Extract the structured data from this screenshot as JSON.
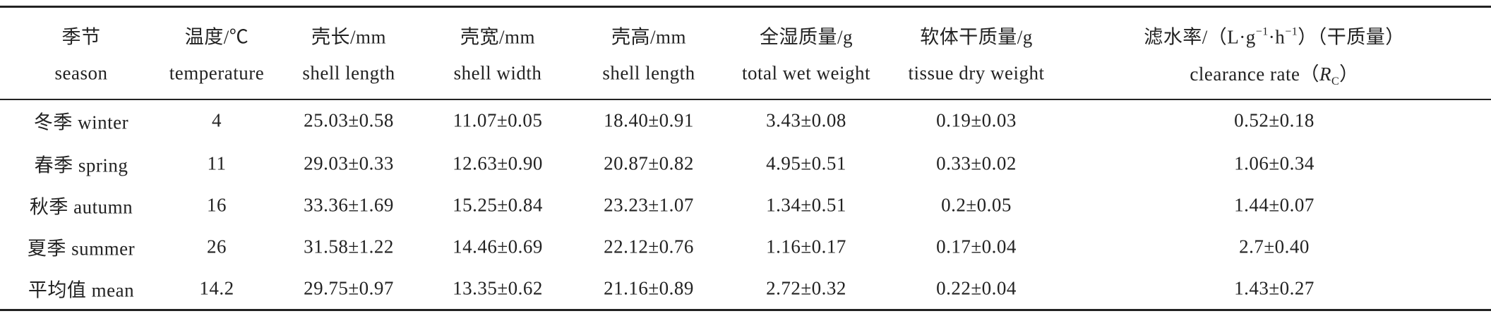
{
  "table": {
    "header": [
      {
        "zh": [
          "季节"
        ],
        "en": [
          "season"
        ]
      },
      {
        "zh": [
          "温度/℃"
        ],
        "en": [
          "temperature"
        ]
      },
      {
        "zh": [
          "壳长/mm"
        ],
        "en": [
          "shell length"
        ]
      },
      {
        "zh": [
          "壳宽/mm"
        ],
        "en": [
          "shell width"
        ]
      },
      {
        "zh": [
          "壳高/mm"
        ],
        "en": [
          "shell length"
        ]
      },
      {
        "zh": [
          "全湿质量/g"
        ],
        "en": [
          "total wet weight"
        ]
      },
      {
        "zh": [
          "软体干质量/g"
        ],
        "en": [
          "tissue dry weight"
        ]
      },
      {
        "zh": [
          "滤水率/（L·g",
          "−1",
          "·h",
          "−1",
          "）（干质量）"
        ],
        "en": [
          "clearance rate（",
          "R",
          "C",
          "）"
        ]
      }
    ],
    "rows": [
      [
        "冬季 winter",
        "4",
        "25.03±0.58",
        "11.07±0.05",
        "18.40±0.91",
        "3.43±0.08",
        "0.19±0.03",
        "0.52±0.18"
      ],
      [
        "春季 spring",
        "11",
        "29.03±0.33",
        "12.63±0.90",
        "20.87±0.82",
        "4.95±0.51",
        "0.33±0.02",
        "1.06±0.34"
      ],
      [
        "秋季 autumn",
        "16",
        "33.36±1.69",
        "15.25±0.84",
        "23.23±1.07",
        "1.34±0.51",
        "0.2±0.05",
        "1.44±0.07"
      ],
      [
        "夏季 summer",
        "26",
        "31.58±1.22",
        "14.46±0.69",
        "22.12±0.76",
        "1.16±0.17",
        "0.17±0.04",
        "2.7±0.40"
      ],
      [
        "平均值 mean",
        "14.2",
        "29.75±0.97",
        "13.35±0.62",
        "21.16±0.89",
        "2.72±0.32",
        "0.22±0.04",
        "1.43±0.27"
      ]
    ]
  }
}
